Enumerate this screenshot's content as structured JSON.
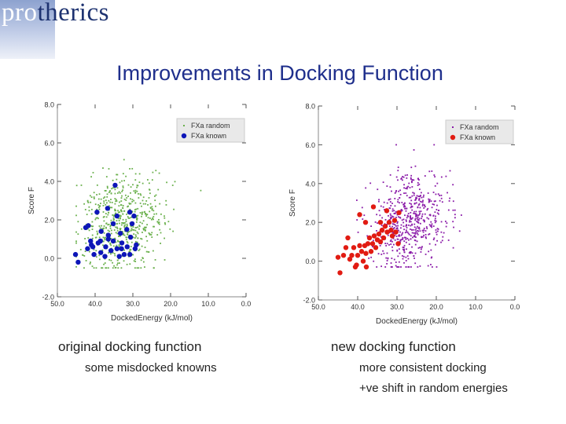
{
  "header": {
    "logo_text_highlight": "pro",
    "logo_text_rest": "therics"
  },
  "slide": {
    "title": "Improvements in Docking Function"
  },
  "left_panel": {
    "caption": "original docking function",
    "note": "some misdocked knowns"
  },
  "right_panel": {
    "caption": "new docking function",
    "note_1": "more consistent docking",
    "note_2": "+ve shift in random energies"
  },
  "chart_data": [
    {
      "type": "scatter",
      "xlabel": "DockedEnergy (kJ/mol)",
      "ylabel": "Score F",
      "x_ticks": [
        "50.0",
        "40.0",
        "30.0",
        "20.0",
        "10.0",
        "0.0"
      ],
      "y_ticks": [
        "8.0",
        "6.0",
        "4.0",
        "2.0",
        "0.0",
        "-2.0"
      ],
      "xlim": [
        50,
        0
      ],
      "ylim": [
        -2,
        8
      ],
      "grid": false,
      "legend_position": "top-right",
      "series": [
        {
          "name": "FXa random",
          "color": "#6ab04c",
          "marker": "small-dot",
          "count": 600,
          "center": [
            33,
            1.8
          ],
          "spread": [
            5.5,
            1.3
          ],
          "x_range": [
            45,
            12
          ],
          "y_range": [
            -0.5,
            6.8
          ]
        },
        {
          "name": "FXa known",
          "color": "#0d16b8",
          "marker": "large-dot",
          "points": [
            [
              44.5,
              -0.2
            ],
            [
              45.2,
              0.2
            ],
            [
              42,
              0.5
            ],
            [
              41,
              0.7
            ],
            [
              42.5,
              1.6
            ],
            [
              41.8,
              1.7
            ],
            [
              40.3,
              0.2
            ],
            [
              40.6,
              0.6
            ],
            [
              39.2,
              0.8
            ],
            [
              38.5,
              0.3
            ],
            [
              38.6,
              0.9
            ],
            [
              37.4,
              0.1
            ],
            [
              37.2,
              0.6
            ],
            [
              36.5,
              1.0
            ],
            [
              35.8,
              0.4
            ],
            [
              35.2,
              0.9
            ],
            [
              34.2,
              0.5
            ],
            [
              33.6,
              0.1
            ],
            [
              32.9,
              0.8
            ],
            [
              32.3,
              0.2
            ],
            [
              31.5,
              0.6
            ],
            [
              30.8,
              0.2
            ],
            [
              30.6,
              1.1
            ],
            [
              29.4,
              0.5
            ],
            [
              39.5,
              2.4
            ],
            [
              38.4,
              1.4
            ],
            [
              36.5,
              1.2
            ],
            [
              35.2,
              1.8
            ],
            [
              33.3,
              1.3
            ],
            [
              31.6,
              1.5
            ],
            [
              29.7,
              2.2
            ],
            [
              30.8,
              2.4
            ],
            [
              29.1,
              0.7
            ],
            [
              36.7,
              2.6
            ],
            [
              30.2,
              1.8
            ],
            [
              34.2,
              2.2
            ],
            [
              33.0,
              0.5
            ],
            [
              41.2,
              0.9
            ],
            [
              34.7,
              3.8
            ]
          ]
        }
      ]
    },
    {
      "type": "scatter",
      "xlabel": "DockedEnergy (kJ/mol)",
      "ylabel": "Score F",
      "x_ticks": [
        "50.0",
        "40.0",
        "30.0",
        "20.0",
        "10.0",
        "0.0"
      ],
      "y_ticks": [
        "8.0",
        "6.0",
        "4.0",
        "2.0",
        "0.0",
        "-2.0"
      ],
      "xlim": [
        50,
        0
      ],
      "ylim": [
        -2,
        8
      ],
      "grid": false,
      "legend_position": "top-right",
      "series": [
        {
          "name": "FXa random",
          "color": "#8a1aa8",
          "marker": "small-dot",
          "count": 600,
          "center": [
            27,
            2.0
          ],
          "spread": [
            5.0,
            1.2
          ],
          "x_range": [
            41,
            7
          ],
          "y_range": [
            -0.3,
            6.0
          ]
        },
        {
          "name": "FXa known",
          "color": "#e11b12",
          "marker": "large-dot",
          "points": [
            [
              44.5,
              -0.6
            ],
            [
              45.0,
              0.2
            ],
            [
              43.6,
              0.3
            ],
            [
              43.0,
              0.7
            ],
            [
              42.0,
              0.1
            ],
            [
              41.5,
              0.3
            ],
            [
              41.0,
              0.7
            ],
            [
              40.3,
              -0.2
            ],
            [
              40.0,
              0.3
            ],
            [
              39.5,
              0.8
            ],
            [
              39.0,
              0.5
            ],
            [
              38.6,
              0.0
            ],
            [
              38.2,
              0.8
            ],
            [
              37.9,
              0.4
            ],
            [
              37.4,
              0.9
            ],
            [
              37.0,
              1.2
            ],
            [
              36.6,
              0.5
            ],
            [
              36.2,
              0.9
            ],
            [
              35.8,
              1.3
            ],
            [
              35.4,
              0.7
            ],
            [
              35.0,
              1.1
            ],
            [
              34.6,
              1.4
            ],
            [
              34.2,
              1.0
            ],
            [
              33.8,
              1.6
            ],
            [
              33.4,
              1.2
            ],
            [
              33.0,
              1.8
            ],
            [
              32.5,
              1.5
            ],
            [
              32.0,
              2.0
            ],
            [
              31.5,
              1.6
            ],
            [
              30.6,
              2.1
            ],
            [
              29.5,
              2.5
            ],
            [
              30.3,
              1.5
            ],
            [
              39.5,
              2.4
            ],
            [
              36.0,
              2.8
            ],
            [
              34.2,
              2.0
            ],
            [
              32.6,
              2.6
            ],
            [
              31.2,
              1.3
            ],
            [
              29.7,
              0.9
            ],
            [
              40.6,
              -0.3
            ],
            [
              37.8,
              -0.3
            ],
            [
              42.5,
              1.2
            ],
            [
              38.0,
              2.0
            ]
          ]
        }
      ]
    }
  ]
}
